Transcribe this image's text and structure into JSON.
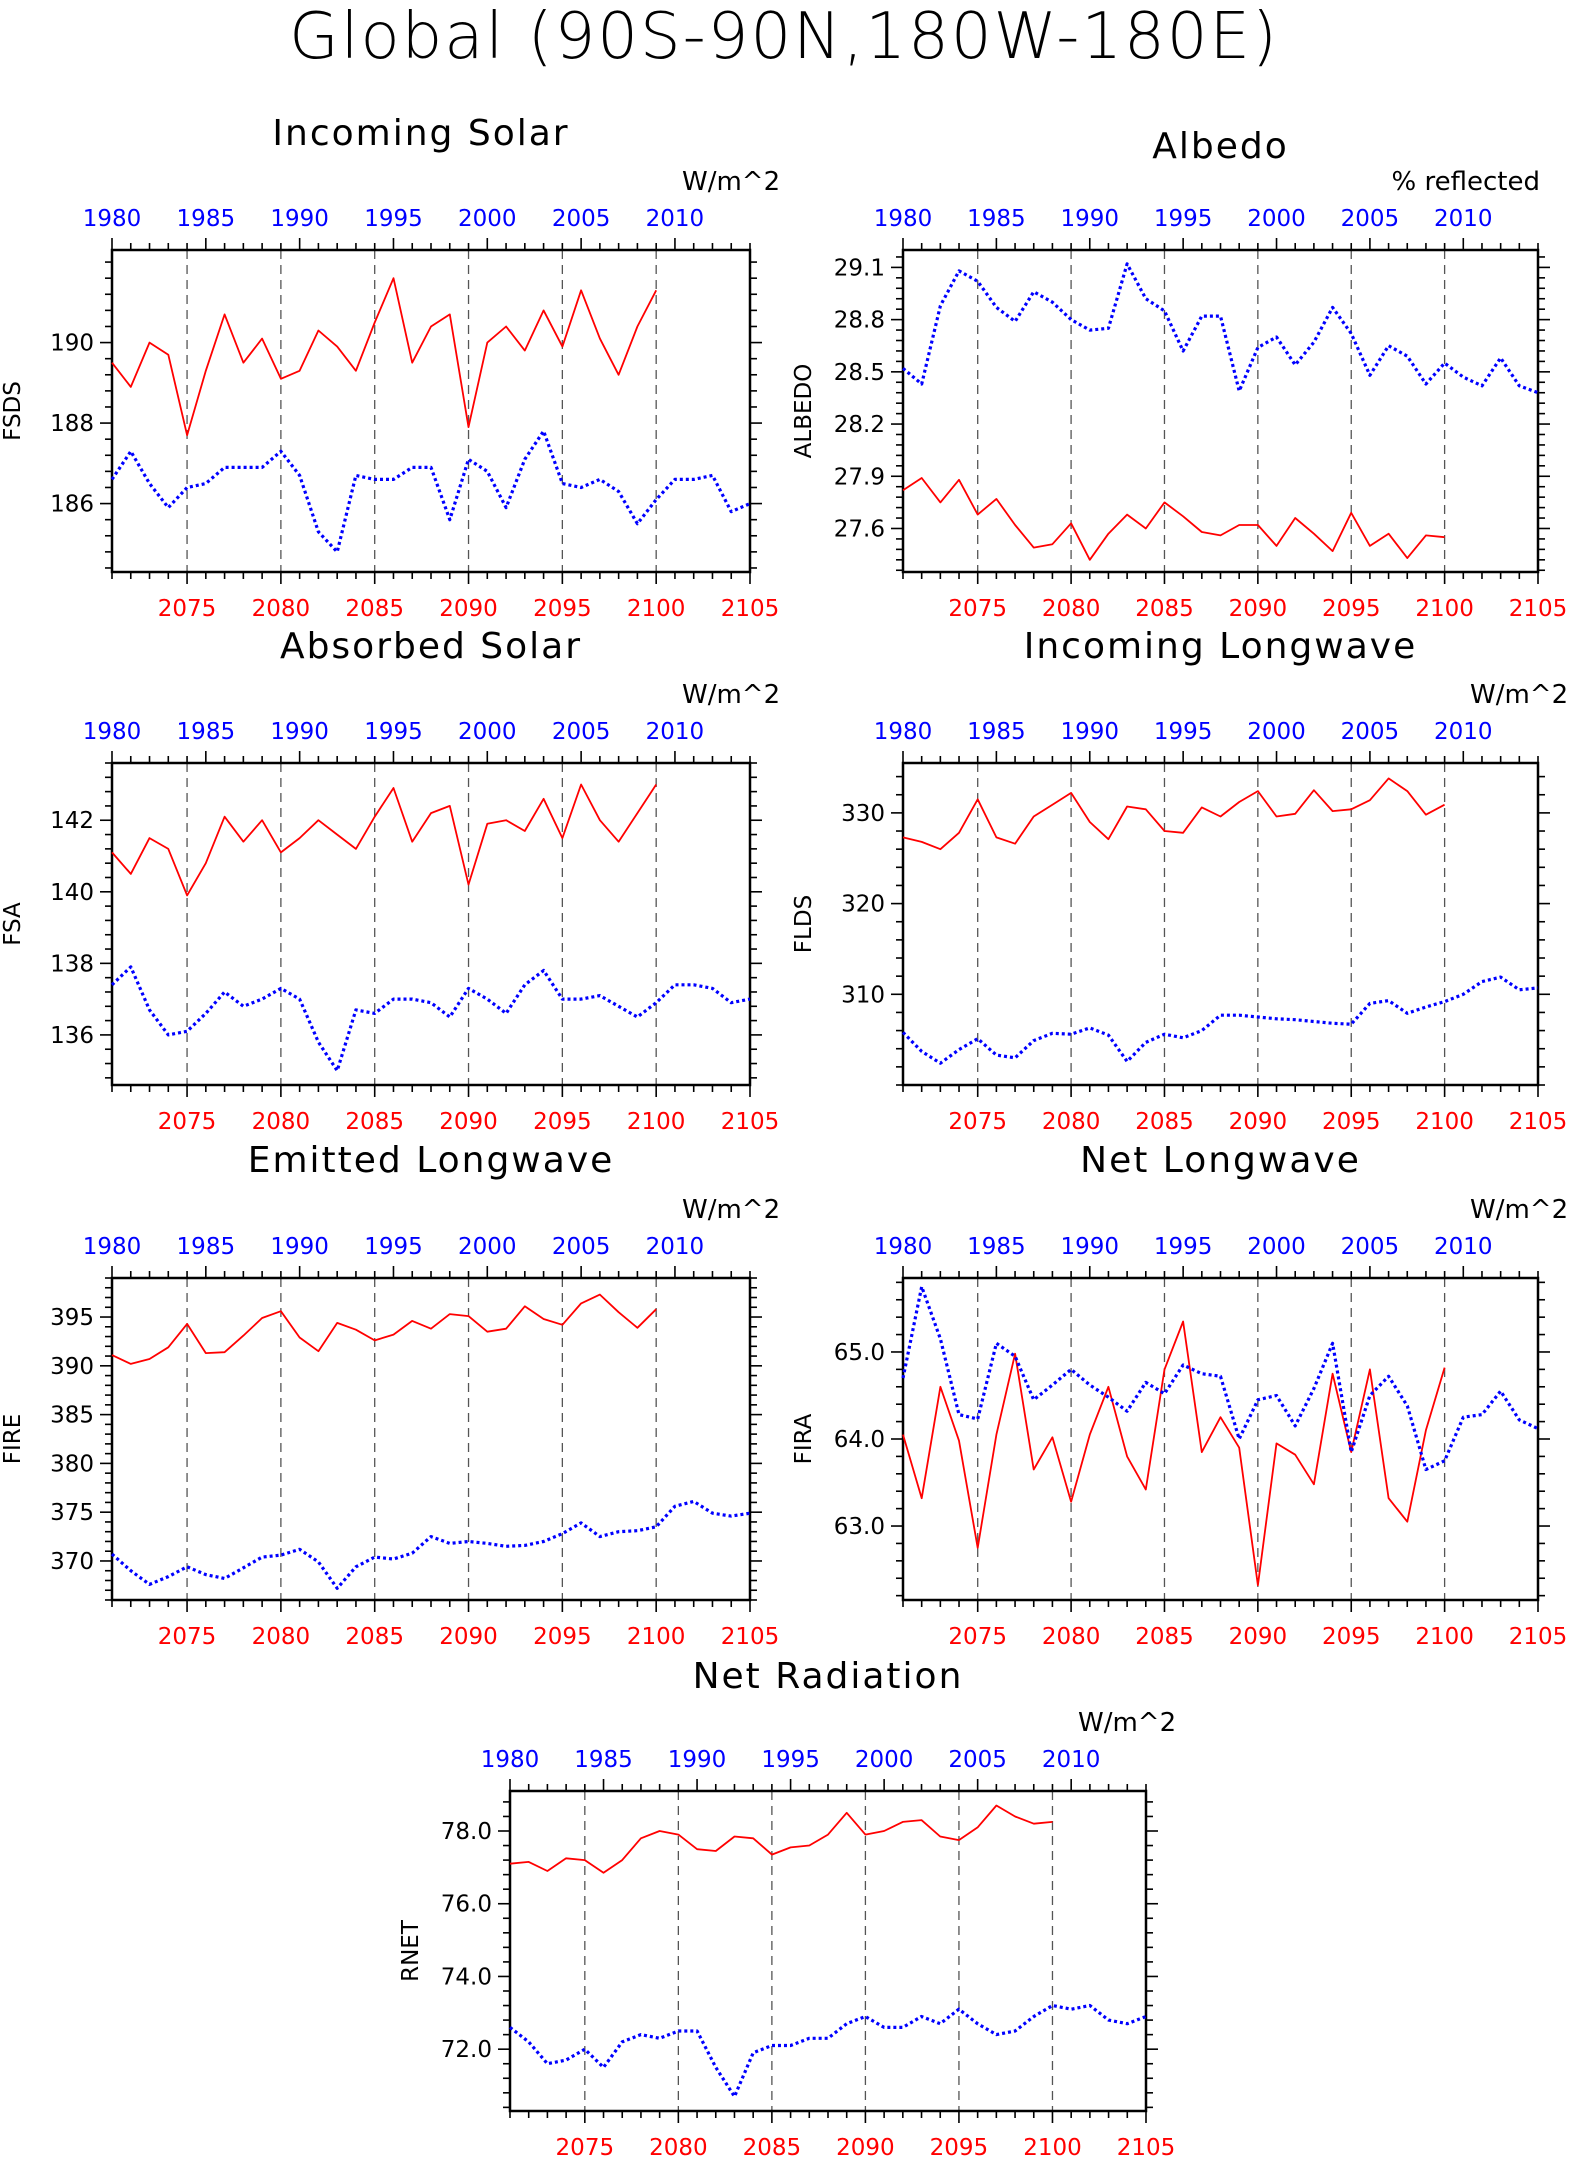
{
  "page_title": "Global (90S-90N,180W-180E)",
  "colors": {
    "series_a": "#ff0000",
    "series_b": "#0000ff",
    "axis": "#000000",
    "divider": "#555555"
  },
  "chart_data": [
    {
      "type": "line",
      "title": "Incoming Solar",
      "units": "W/m^2",
      "ylabel": "FSDS",
      "ylim": [
        184.3,
        192.3
      ],
      "yticks": [
        186,
        188,
        190
      ],
      "ytick_labels": [
        "186",
        "188",
        "190"
      ],
      "x_bottom": {
        "range": [
          2071,
          2105
        ],
        "ticks": [
          2075,
          2080,
          2085,
          2090,
          2095,
          2100,
          2105
        ]
      },
      "x_top": {
        "range": [
          1980,
          2014
        ],
        "ticks": [
          1980,
          1985,
          1990,
          1995,
          2000,
          2005,
          2010
        ]
      },
      "grid": "vertical dashed at every 5 years",
      "series": [
        {
          "color": "red",
          "style": "solid",
          "x_start": 2071,
          "values": [
            189.5,
            188.9,
            190.0,
            189.7,
            187.7,
            189.3,
            190.7,
            189.5,
            190.1,
            189.1,
            189.3,
            190.3,
            189.9,
            189.3,
            190.5,
            191.6,
            189.5,
            190.4,
            190.7,
            187.9,
            190.0,
            190.4,
            189.8,
            190.8,
            189.9,
            191.3,
            190.1,
            189.2,
            190.4,
            191.3
          ]
        },
        {
          "color": "blue",
          "style": "dotted",
          "x_start": 1980,
          "values": [
            186.6,
            187.3,
            186.5,
            185.9,
            186.4,
            186.5,
            186.9,
            186.9,
            186.9,
            187.3,
            186.7,
            185.3,
            184.8,
            186.7,
            186.6,
            186.6,
            186.9,
            186.9,
            185.6,
            187.1,
            186.8,
            185.9,
            187.1,
            187.8,
            186.5,
            186.4,
            186.6,
            186.3,
            185.5,
            186.1,
            186.6,
            186.6,
            186.7,
            185.8,
            186.0
          ]
        }
      ]
    },
    {
      "type": "line",
      "title": "Albedo",
      "units": "% reflected",
      "ylabel": "ALBEDO",
      "ylim": [
        27.35,
        29.2
      ],
      "yticks": [
        27.6,
        27.9,
        28.2,
        28.5,
        28.8,
        29.1
      ],
      "ytick_labels": [
        "27.6",
        "27.9",
        "28.2",
        "28.5",
        "28.8",
        "29.1"
      ],
      "x_bottom": {
        "range": [
          2071,
          2105
        ],
        "ticks": [
          2075,
          2080,
          2085,
          2090,
          2095,
          2100,
          2105
        ]
      },
      "x_top": {
        "range": [
          1980,
          2014
        ],
        "ticks": [
          1980,
          1985,
          1990,
          1995,
          2000,
          2005,
          2010
        ]
      },
      "grid": "vertical dashed at every 5 years",
      "series": [
        {
          "color": "red",
          "style": "solid",
          "x_start": 2071,
          "values": [
            27.82,
            27.89,
            27.75,
            27.88,
            27.68,
            27.77,
            27.62,
            27.49,
            27.51,
            27.63,
            27.42,
            27.57,
            27.68,
            27.6,
            27.75,
            27.67,
            27.58,
            27.56,
            27.62,
            27.62,
            27.5,
            27.66,
            27.57,
            27.47,
            27.69,
            27.5,
            27.57,
            27.43,
            27.56,
            27.55
          ]
        },
        {
          "color": "blue",
          "style": "dotted",
          "x_start": 1980,
          "values": [
            28.52,
            28.43,
            28.88,
            29.08,
            29.02,
            28.87,
            28.79,
            28.96,
            28.9,
            28.8,
            28.74,
            28.75,
            29.12,
            28.92,
            28.85,
            28.62,
            28.82,
            28.82,
            28.39,
            28.64,
            28.7,
            28.54,
            28.67,
            28.87,
            28.72,
            28.48,
            28.65,
            28.59,
            28.43,
            28.55,
            28.47,
            28.42,
            28.58,
            28.42,
            28.38
          ]
        }
      ]
    },
    {
      "type": "line",
      "title": "Absorbed Solar",
      "units": "W/m^2",
      "ylabel": "FSA",
      "ylim": [
        134.6,
        143.6
      ],
      "yticks": [
        136,
        138,
        140,
        142
      ],
      "ytick_labels": [
        "136",
        "138",
        "140",
        "142"
      ],
      "x_bottom": {
        "range": [
          2071,
          2105
        ],
        "ticks": [
          2075,
          2080,
          2085,
          2090,
          2095,
          2100,
          2105
        ]
      },
      "x_top": {
        "range": [
          1980,
          2014
        ],
        "ticks": [
          1980,
          1985,
          1990,
          1995,
          2000,
          2005,
          2010
        ]
      },
      "grid": "vertical dashed at every 5 years",
      "series": [
        {
          "color": "red",
          "style": "solid",
          "x_start": 2071,
          "values": [
            141.1,
            140.5,
            141.5,
            141.2,
            139.9,
            140.8,
            142.1,
            141.4,
            142.0,
            141.1,
            141.5,
            142.0,
            141.6,
            141.2,
            142.1,
            142.9,
            141.4,
            142.2,
            142.4,
            140.2,
            141.9,
            142.0,
            141.7,
            142.6,
            141.5,
            143.0,
            142.0,
            141.4,
            142.2,
            143.0
          ]
        },
        {
          "color": "blue",
          "style": "dotted",
          "x_start": 1980,
          "values": [
            137.4,
            137.9,
            136.7,
            136.0,
            136.1,
            136.6,
            137.2,
            136.8,
            137.0,
            137.3,
            137.0,
            135.8,
            135.0,
            136.7,
            136.6,
            137.0,
            137.0,
            136.9,
            136.5,
            137.3,
            137.0,
            136.6,
            137.4,
            137.8,
            137.0,
            137.0,
            137.1,
            136.8,
            136.5,
            136.9,
            137.4,
            137.4,
            137.3,
            136.9,
            137.0
          ]
        }
      ]
    },
    {
      "type": "line",
      "title": "Incoming Longwave",
      "units": "W/m^2",
      "ylabel": "FLDS",
      "ylim": [
        300,
        335.5
      ],
      "yticks": [
        310,
        320,
        330
      ],
      "ytick_labels": [
        "310",
        "320",
        "330"
      ],
      "x_bottom": {
        "range": [
          2071,
          2105
        ],
        "ticks": [
          2075,
          2080,
          2085,
          2090,
          2095,
          2100,
          2105
        ]
      },
      "x_top": {
        "range": [
          1980,
          2014
        ],
        "ticks": [
          1980,
          1985,
          1990,
          1995,
          2000,
          2005,
          2010
        ]
      },
      "grid": "vertical dashed at every 5 years",
      "series": [
        {
          "color": "red",
          "style": "solid",
          "x_start": 2071,
          "values": [
            327.3,
            326.8,
            326.0,
            327.8,
            331.5,
            327.3,
            326.6,
            329.6,
            330.9,
            332.2,
            329.0,
            327.1,
            330.7,
            330.4,
            328.0,
            327.8,
            330.6,
            329.6,
            331.2,
            332.4,
            329.6,
            329.9,
            332.5,
            330.2,
            330.4,
            331.4,
            333.8,
            332.4,
            329.8,
            330.9
          ]
        },
        {
          "color": "blue",
          "style": "dotted",
          "x_start": 1980,
          "values": [
            305.8,
            303.7,
            302.4,
            303.9,
            305.1,
            303.3,
            303.0,
            304.9,
            305.7,
            305.6,
            306.3,
            305.5,
            302.6,
            304.7,
            305.6,
            305.2,
            306.0,
            307.7,
            307.7,
            307.5,
            307.3,
            307.2,
            307.0,
            306.8,
            306.7,
            309.0,
            309.3,
            307.9,
            308.6,
            309.2,
            310.0,
            311.4,
            311.9,
            310.5,
            310.7
          ]
        }
      ]
    },
    {
      "type": "line",
      "title": "Emitted Longwave",
      "units": "W/m^2",
      "ylabel": "FIRE",
      "ylim": [
        366,
        399
      ],
      "yticks": [
        370,
        375,
        380,
        385,
        390,
        395
      ],
      "ytick_labels": [
        "370",
        "375",
        "380",
        "385",
        "390",
        "395"
      ],
      "x_bottom": {
        "range": [
          2071,
          2105
        ],
        "ticks": [
          2075,
          2080,
          2085,
          2090,
          2095,
          2100,
          2105
        ]
      },
      "x_top": {
        "range": [
          1980,
          2014
        ],
        "ticks": [
          1980,
          1985,
          1990,
          1995,
          2000,
          2005,
          2010
        ]
      },
      "grid": "vertical dashed at every 5 years",
      "series": [
        {
          "color": "red",
          "style": "solid",
          "x_start": 2071,
          "values": [
            391.1,
            390.2,
            390.7,
            391.9,
            394.3,
            391.3,
            391.4,
            393.1,
            394.9,
            395.6,
            392.9,
            391.5,
            394.4,
            393.7,
            392.6,
            393.2,
            394.6,
            393.8,
            395.3,
            395.1,
            393.5,
            393.8,
            396.1,
            394.8,
            394.2,
            396.4,
            397.3,
            395.5,
            393.9,
            395.8
          ]
        },
        {
          "color": "blue",
          "style": "dotted",
          "x_start": 1980,
          "values": [
            370.7,
            369.0,
            367.6,
            368.4,
            369.4,
            368.6,
            368.2,
            369.3,
            370.4,
            370.6,
            371.2,
            369.9,
            367.2,
            369.4,
            370.4,
            370.2,
            370.8,
            372.5,
            371.8,
            372.0,
            371.8,
            371.5,
            371.6,
            372.0,
            372.8,
            373.9,
            372.5,
            373.0,
            373.1,
            373.5,
            375.6,
            376.1,
            374.9,
            374.6,
            374.9
          ]
        }
      ]
    },
    {
      "type": "line",
      "title": "Net Longwave",
      "units": "W/m^2",
      "ylabel": "FIRA",
      "ylim": [
        62.15,
        65.85
      ],
      "yticks": [
        63.0,
        64.0,
        65.0
      ],
      "ytick_labels": [
        "63.0",
        "64.0",
        "65.0"
      ],
      "x_bottom": {
        "range": [
          2071,
          2105
        ],
        "ticks": [
          2075,
          2080,
          2085,
          2090,
          2095,
          2100,
          2105
        ]
      },
      "x_top": {
        "range": [
          1980,
          2014
        ],
        "ticks": [
          1980,
          1985,
          1990,
          1995,
          2000,
          2005,
          2010
        ]
      },
      "grid": "vertical dashed at every 5 years",
      "series": [
        {
          "color": "red",
          "style": "solid",
          "x_start": 2071,
          "values": [
            64.05,
            63.32,
            64.6,
            63.98,
            62.75,
            64.05,
            64.98,
            63.65,
            64.02,
            63.28,
            64.05,
            64.6,
            63.8,
            63.42,
            64.8,
            65.35,
            63.85,
            64.25,
            63.9,
            62.32,
            63.95,
            63.82,
            63.48,
            64.75,
            63.85,
            64.8,
            63.32,
            63.05,
            64.1,
            64.82
          ]
        },
        {
          "color": "blue",
          "style": "dotted",
          "x_start": 1980,
          "values": [
            64.7,
            65.75,
            65.15,
            64.28,
            64.23,
            65.1,
            64.95,
            64.45,
            64.62,
            64.8,
            64.62,
            64.48,
            64.32,
            64.65,
            64.52,
            64.85,
            64.75,
            64.72,
            64.0,
            64.45,
            64.5,
            64.15,
            64.58,
            65.1,
            63.85,
            64.5,
            64.72,
            64.38,
            63.65,
            63.75,
            64.25,
            64.28,
            64.55,
            64.22,
            64.12
          ]
        }
      ]
    },
    {
      "type": "line",
      "title": "Net Radiation",
      "units": "W/m^2",
      "ylabel": "RNET",
      "ylim": [
        70.3,
        79.1
      ],
      "yticks": [
        72.0,
        74.0,
        76.0,
        78.0
      ],
      "ytick_labels": [
        "72.0",
        "74.0",
        "76.0",
        "78.0"
      ],
      "x_bottom": {
        "range": [
          2071,
          2105
        ],
        "ticks": [
          2075,
          2080,
          2085,
          2090,
          2095,
          2100,
          2105
        ]
      },
      "x_top": {
        "range": [
          1980,
          2014
        ],
        "ticks": [
          1980,
          1985,
          1990,
          1995,
          2000,
          2005,
          2010
        ]
      },
      "grid": "vertical dashed at every 5 years",
      "series": [
        {
          "color": "red",
          "style": "solid",
          "x_start": 2071,
          "values": [
            77.1,
            77.15,
            76.9,
            77.25,
            77.2,
            76.85,
            77.2,
            77.8,
            78.0,
            77.9,
            77.5,
            77.45,
            77.85,
            77.8,
            77.35,
            77.55,
            77.6,
            77.9,
            78.5,
            77.9,
            78.0,
            78.25,
            78.3,
            77.85,
            77.75,
            78.1,
            78.7,
            78.4,
            78.2,
            78.25
          ]
        },
        {
          "color": "blue",
          "style": "dotted",
          "x_start": 1980,
          "values": [
            72.6,
            72.2,
            71.6,
            71.7,
            72.0,
            71.5,
            72.2,
            72.4,
            72.3,
            72.5,
            72.5,
            71.5,
            70.7,
            71.9,
            72.1,
            72.1,
            72.3,
            72.3,
            72.7,
            72.9,
            72.6,
            72.6,
            72.9,
            72.7,
            73.1,
            72.7,
            72.4,
            72.5,
            72.9,
            73.2,
            73.1,
            73.2,
            72.8,
            72.7,
            72.9
          ]
        }
      ]
    }
  ]
}
